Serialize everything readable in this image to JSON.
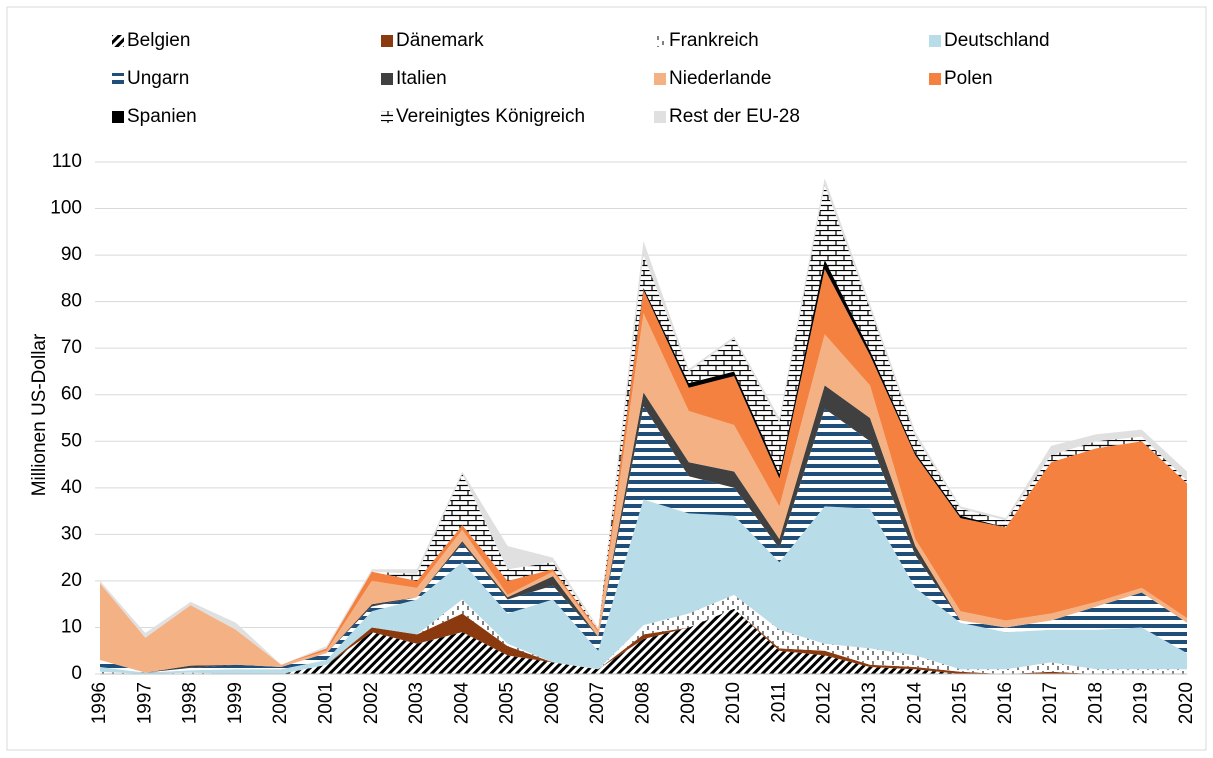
{
  "chart_data": {
    "type": "stacked_area",
    "ylabel": "Millionen US-Dollar",
    "categories": [
      "1996",
      "1997",
      "1998",
      "1999",
      "2000",
      "2001",
      "2002",
      "2003",
      "2004",
      "2005",
      "2006",
      "2007",
      "2008",
      "2009",
      "2010",
      "2011",
      "2012",
      "2013",
      "2014",
      "2015",
      "2016",
      "2017",
      "2018",
      "2019",
      "2020"
    ],
    "ylim": [
      0,
      110
    ],
    "yticks": [
      0,
      10,
      20,
      30,
      40,
      50,
      60,
      70,
      80,
      90,
      100,
      110
    ],
    "grid": true,
    "legend": "top",
    "series": [
      {
        "name": "Belgien",
        "color": "#000000",
        "values": [
          0,
          0,
          0,
          0,
          0,
          2,
          9,
          6.5,
          9,
          4,
          2.5,
          1,
          7.5,
          10,
          14,
          5,
          4,
          1.5,
          1,
          0,
          0,
          0,
          0,
          0,
          0
        ]
      },
      {
        "name": "Dänemark",
        "color": "#8b3a0f",
        "values": [
          0,
          0,
          0,
          0,
          0,
          0,
          1,
          2,
          4,
          2,
          0,
          0,
          1,
          0,
          0,
          0.5,
          1,
          0.5,
          0.5,
          0.5,
          0,
          0.5,
          0,
          0,
          0
        ]
      },
      {
        "name": "Frankreich",
        "color": "#7f7f7f",
        "values": [
          0.5,
          0,
          0.3,
          0,
          0,
          0,
          0,
          0,
          3,
          0.5,
          0,
          0,
          2,
          3,
          3,
          4,
          1.5,
          3.5,
          2.5,
          0.5,
          1,
          2,
          1,
          1,
          1
        ]
      },
      {
        "name": "Deutschland",
        "color": "#b8dce8",
        "values": [
          1,
          0.3,
          0.5,
          1,
          1,
          1,
          3.5,
          7.5,
          8,
          6.5,
          13.5,
          4,
          27,
          21.5,
          17,
          14.5,
          29.5,
          30,
          14.5,
          10,
          8,
          7,
          8.5,
          9,
          3.5
        ]
      },
      {
        "name": "Ungarn",
        "color": "#1f4e79",
        "values": [
          1.5,
          0,
          0.5,
          1,
          0.5,
          1.5,
          1,
          0.5,
          4,
          3,
          3,
          3,
          20,
          8,
          6,
          3,
          21,
          14.5,
          7,
          0.5,
          1,
          2,
          5,
          7.5,
          6.5
        ]
      },
      {
        "name": "Italien",
        "color": "#404040",
        "values": [
          0,
          0,
          0.5,
          0,
          0,
          0,
          0.5,
          0,
          0.5,
          0.5,
          2,
          0,
          3,
          3,
          3.5,
          2,
          5,
          5,
          2,
          0,
          0,
          0,
          0,
          0,
          0
        ]
      },
      {
        "name": "Niederlande",
        "color": "#f4b183",
        "values": [
          16.5,
          7.5,
          13,
          7.5,
          0.5,
          0.5,
          5,
          2,
          2.5,
          0.5,
          1,
          1,
          17,
          11,
          10,
          7,
          11,
          7,
          1.5,
          2,
          1.5,
          1.5,
          1,
          1,
          1
        ]
      },
      {
        "name": "Polen",
        "color": "#f4813f",
        "values": [
          0,
          0,
          0,
          0,
          0,
          0.5,
          2,
          1.5,
          1,
          3,
          0.5,
          0.5,
          5,
          5,
          10.5,
          6,
          14,
          6.5,
          18,
          20,
          20,
          32.5,
          33,
          31.5,
          29
        ]
      },
      {
        "name": "Spanien",
        "color": "#000000",
        "values": [
          0,
          0,
          0,
          0,
          0,
          0,
          0,
          0,
          0,
          0,
          0,
          0,
          0.5,
          1,
          1,
          1,
          2,
          1,
          0.5,
          0.5,
          0,
          0,
          0,
          0,
          0
        ]
      },
      {
        "name": "Vereinigtes Königreich",
        "color": "#000000",
        "values": [
          0,
          0,
          0,
          0,
          0,
          0,
          0,
          1.5,
          11,
          2.5,
          1.5,
          0,
          7,
          2.5,
          7,
          11,
          16,
          9,
          3.5,
          1.5,
          1.5,
          1.5,
          1.5,
          1,
          0.5
        ]
      },
      {
        "name": "Rest der EU-28",
        "color": "#e0e0e0",
        "values": [
          0.5,
          1,
          0.7,
          1.5,
          0,
          0.5,
          0.5,
          1,
          0.5,
          5,
          1,
          0.5,
          3,
          0.5,
          0.5,
          1,
          1.5,
          1,
          1,
          0.5,
          0.5,
          2,
          1.5,
          1.5,
          2
        ]
      }
    ]
  }
}
